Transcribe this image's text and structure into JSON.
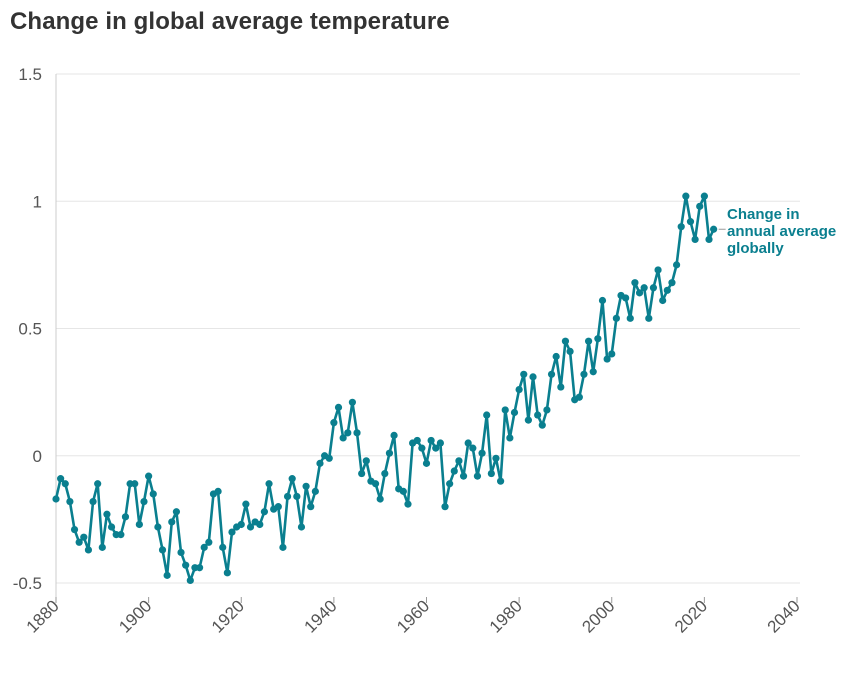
{
  "chart_data": {
    "type": "line",
    "title": "Change in global average temperature",
    "xlabel": "",
    "ylabel": "",
    "xlim": [
      1880,
      2040
    ],
    "ylim": [
      -0.5,
      1.5
    ],
    "x_ticks": [
      "1880",
      "1900",
      "1920",
      "1940",
      "1960",
      "1980",
      "2000",
      "2020",
      "2040"
    ],
    "y_ticks": [
      "-0.5",
      "0",
      "0.5",
      "1",
      "1.5"
    ],
    "grid": true,
    "series_color": "#0a7f8f",
    "series": [
      {
        "name": "Change in annual average globally",
        "label_lines": [
          "Change in",
          "annual average",
          "globally"
        ],
        "x": [
          1880,
          1881,
          1882,
          1883,
          1884,
          1885,
          1886,
          1887,
          1888,
          1889,
          1890,
          1891,
          1892,
          1893,
          1894,
          1895,
          1896,
          1897,
          1898,
          1899,
          1900,
          1901,
          1902,
          1903,
          1904,
          1905,
          1906,
          1907,
          1908,
          1909,
          1910,
          1911,
          1912,
          1913,
          1914,
          1915,
          1916,
          1917,
          1918,
          1919,
          1920,
          1921,
          1922,
          1923,
          1924,
          1925,
          1926,
          1927,
          1928,
          1929,
          1930,
          1931,
          1932,
          1933,
          1934,
          1935,
          1936,
          1937,
          1938,
          1939,
          1940,
          1941,
          1942,
          1943,
          1944,
          1945,
          1946,
          1947,
          1948,
          1949,
          1950,
          1951,
          1952,
          1953,
          1954,
          1955,
          1956,
          1957,
          1958,
          1959,
          1960,
          1961,
          1962,
          1963,
          1964,
          1965,
          1966,
          1967,
          1968,
          1969,
          1970,
          1971,
          1972,
          1973,
          1974,
          1975,
          1976,
          1977,
          1978,
          1979,
          1980,
          1981,
          1982,
          1983,
          1984,
          1985,
          1986,
          1987,
          1988,
          1989,
          1990,
          1991,
          1992,
          1993,
          1994,
          1995,
          1996,
          1997,
          1998,
          1999,
          2000,
          2001,
          2002,
          2003,
          2004,
          2005,
          2006,
          2007,
          2008,
          2009,
          2010,
          2011,
          2012,
          2013,
          2014,
          2015,
          2016,
          2017,
          2018,
          2019,
          2020,
          2021,
          2022
        ],
        "values": [
          -0.17,
          -0.09,
          -0.11,
          -0.18,
          -0.29,
          -0.34,
          -0.32,
          -0.37,
          -0.18,
          -0.11,
          -0.36,
          -0.23,
          -0.28,
          -0.31,
          -0.31,
          -0.24,
          -0.11,
          -0.11,
          -0.27,
          -0.18,
          -0.08,
          -0.15,
          -0.28,
          -0.37,
          -0.47,
          -0.26,
          -0.22,
          -0.38,
          -0.43,
          -0.49,
          -0.44,
          -0.44,
          -0.36,
          -0.34,
          -0.15,
          -0.14,
          -0.36,
          -0.46,
          -0.3,
          -0.28,
          -0.27,
          -0.19,
          -0.28,
          -0.26,
          -0.27,
          -0.22,
          -0.11,
          -0.21,
          -0.2,
          -0.36,
          -0.16,
          -0.09,
          -0.16,
          -0.28,
          -0.12,
          -0.2,
          -0.14,
          -0.03,
          0.0,
          -0.01,
          0.13,
          0.19,
          0.07,
          0.09,
          0.21,
          0.09,
          -0.07,
          -0.02,
          -0.1,
          -0.11,
          -0.17,
          -0.07,
          0.01,
          0.08,
          -0.13,
          -0.14,
          -0.19,
          0.05,
          0.06,
          0.03,
          -0.03,
          0.06,
          0.03,
          0.05,
          -0.2,
          -0.11,
          -0.06,
          -0.02,
          -0.08,
          0.05,
          0.03,
          -0.08,
          0.01,
          0.16,
          -0.07,
          -0.01,
          -0.1,
          0.18,
          0.07,
          0.17,
          0.26,
          0.32,
          0.14,
          0.31,
          0.16,
          0.12,
          0.18,
          0.32,
          0.39,
          0.27,
          0.45,
          0.41,
          0.22,
          0.23,
          0.32,
          0.45,
          0.33,
          0.46,
          0.61,
          0.38,
          0.4,
          0.54,
          0.63,
          0.62,
          0.54,
          0.68,
          0.64,
          0.66,
          0.54,
          0.66,
          0.73,
          0.61,
          0.65,
          0.68,
          0.75,
          0.9,
          1.02,
          0.92,
          0.85,
          0.98,
          1.02,
          0.85,
          0.89
        ]
      }
    ]
  }
}
